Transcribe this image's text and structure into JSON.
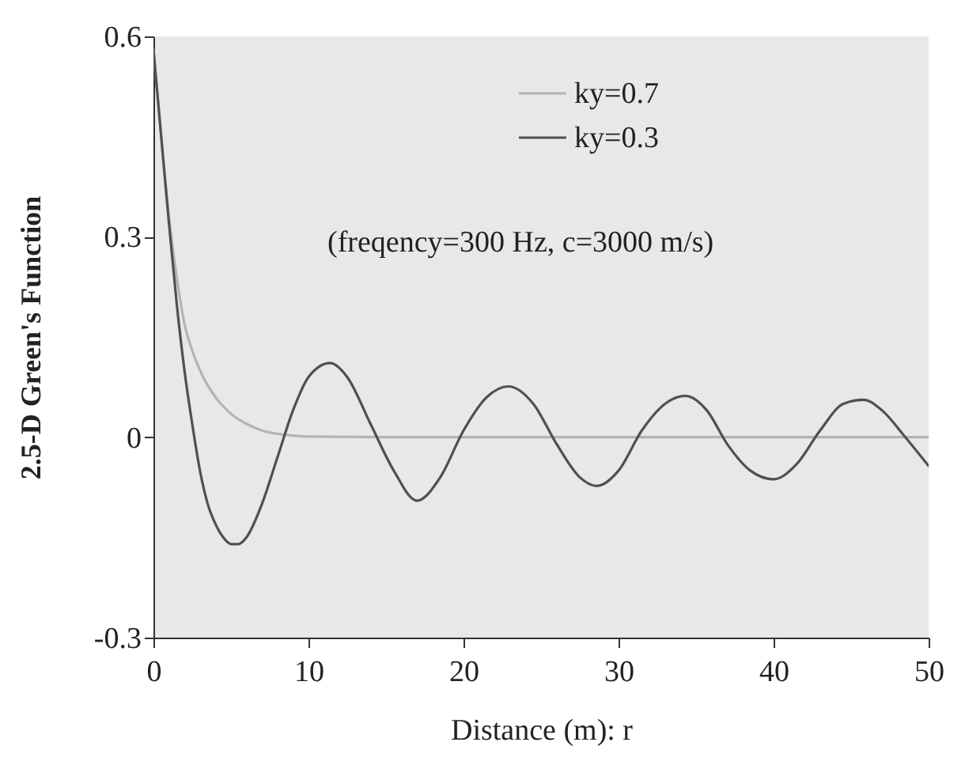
{
  "chart_data": {
    "type": "line",
    "xlabel": "Distance (m): r",
    "ylabel": "2.5-D Green's Function",
    "annotations": [
      "(freqency=300 Hz, c=3000 m/s)"
    ],
    "xlim": [
      0,
      50
    ],
    "xticks": [
      0,
      10,
      20,
      30,
      40,
      50
    ],
    "ylim": [
      -0.3,
      0.6
    ],
    "yticks": [
      -0.3,
      0,
      0.3,
      0.6
    ],
    "grid": false,
    "legend": "top",
    "line_style": "solid",
    "marker": "none",
    "series": [
      {
        "name": "ky=0.7",
        "color": "#b4b4b4",
        "x": [
          0,
          0.5,
          1,
          1.5,
          2,
          2.5,
          3,
          4,
          5,
          6,
          7,
          8,
          10,
          15,
          20,
          30,
          40,
          50
        ],
        "values": [
          0.58,
          0.45,
          0.33,
          0.24,
          0.17,
          0.13,
          0.1,
          0.06,
          0.035,
          0.02,
          0.01,
          0.005,
          0.001,
          0,
          0,
          0,
          0,
          0
        ]
      },
      {
        "name": "ky=0.3",
        "color": "#505050",
        "x": [
          0,
          0.5,
          1,
          1.5,
          2,
          2.5,
          3,
          3.5,
          4,
          4.5,
          5,
          5.5,
          6,
          7,
          8,
          9,
          10,
          11.4,
          12.5,
          14,
          15.5,
          17,
          18.5,
          20,
          21.5,
          22.9,
          24.5,
          26,
          27.5,
          28.6,
          30,
          31.5,
          33,
          34.3,
          35.7,
          37,
          38.5,
          40,
          41.5,
          43,
          44.5,
          45.8,
          47,
          48.5,
          50
        ],
        "values": [
          0.58,
          0.45,
          0.32,
          0.2,
          0.1,
          0.02,
          -0.05,
          -0.1,
          -0.13,
          -0.15,
          -0.16,
          -0.16,
          -0.15,
          -0.1,
          -0.03,
          0.04,
          0.09,
          0.111,
          0.09,
          0.02,
          -0.05,
          -0.095,
          -0.06,
          0.01,
          0.06,
          0.076,
          0.05,
          -0.01,
          -0.06,
          -0.073,
          -0.05,
          0.01,
          0.05,
          0.062,
          0.04,
          -0.01,
          -0.05,
          -0.063,
          -0.04,
          0.01,
          0.05,
          0.056,
          0.04,
          0,
          -0.043
        ]
      }
    ]
  }
}
